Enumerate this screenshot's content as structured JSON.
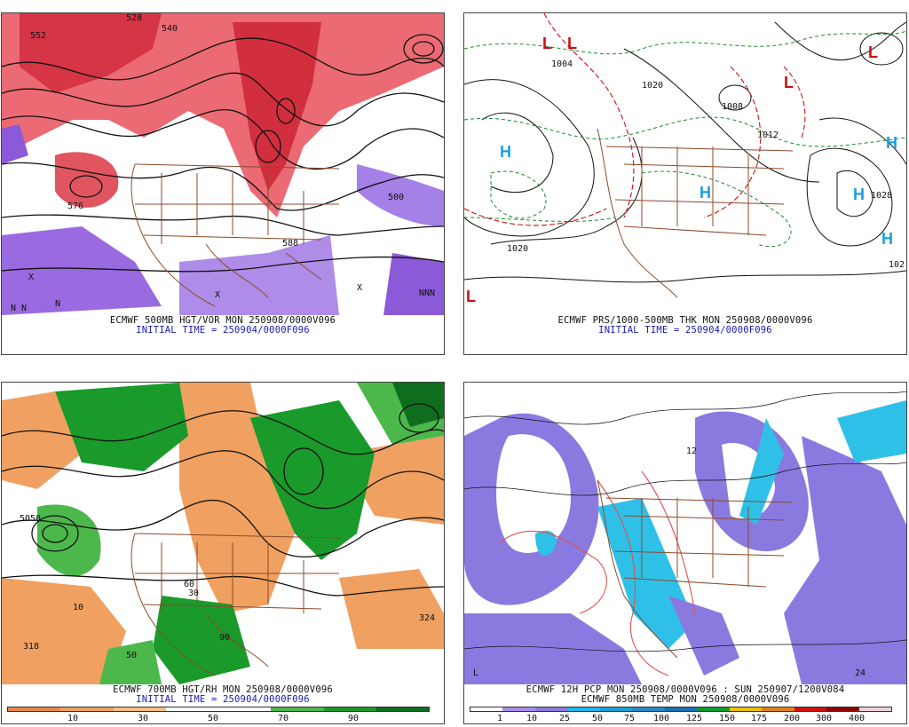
{
  "panels": [
    {
      "id": "p1",
      "caption1": "ECMWF 500MB HGT/VOR MON 250908/0000V096",
      "caption2": "INITIAL TIME = 250904/0000F096",
      "labels": [
        "552",
        "528",
        "540",
        "576",
        "500",
        "588",
        "X",
        "N"
      ]
    },
    {
      "id": "p2",
      "caption1": "ECMWF PRS/1000-500MB THK MON 250908/0000V096",
      "caption2": "INITIAL TIME = 250904/0000F096",
      "labels": [
        "H",
        "L",
        "1020",
        "1028",
        "102",
        "1004",
        "1012",
        "1008"
      ]
    },
    {
      "id": "p3",
      "caption1": "ECMWF 700MB HGT/RH MON 250908/0000V096",
      "caption2": "INITIAL TIME = 250904/0000F096",
      "colorbar_labels": [
        "10",
        "30",
        "50",
        "70",
        "90"
      ],
      "labels": [
        "318",
        "324",
        "10",
        "50",
        "30",
        "90",
        "60"
      ]
    },
    {
      "id": "p4",
      "caption1": "ECMWF 12H PCP MON 250908/0000V096 : SUN 250907/1200V084",
      "caption2": "ECMWF 850MB TEMP MON 250908/0000V096",
      "colorbar_labels": [
        "1",
        "10",
        "25",
        "50",
        "75",
        "100",
        "125",
        "150",
        "175",
        "200",
        "300",
        "400"
      ],
      "labels": [
        "12",
        "24",
        "L"
      ]
    }
  ],
  "colors": {
    "rh_dry": "#f0a060",
    "rh_moist": "#1a9a2a",
    "vort_pos": "#e03040",
    "vort_neg": "#8a5ad8",
    "high": "#1aa0e0",
    "low": "#cc1010",
    "border": "#8b4a2a"
  }
}
